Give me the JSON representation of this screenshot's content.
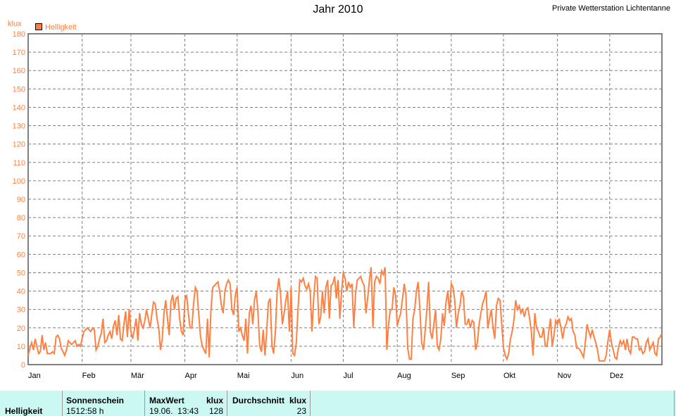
{
  "header": {
    "title": "Jahr 2010",
    "station": "Private Wetterstation Lichtentanne"
  },
  "colors": {
    "series": "#ff8040",
    "grid": "#808080",
    "table_bg": "#ccf8f4"
  },
  "chart_data": {
    "type": "line",
    "title": "Jahr 2010",
    "ylabel": "klux",
    "ylim": [
      0,
      180
    ],
    "yticks": [
      0,
      10,
      20,
      30,
      40,
      50,
      60,
      70,
      80,
      90,
      100,
      110,
      120,
      130,
      140,
      150,
      160,
      170,
      180
    ],
    "months": [
      "Jan",
      "Feb",
      "Mär",
      "Apr",
      "Mai",
      "Jun",
      "Jul",
      "Aug",
      "Sep",
      "Okt",
      "Nov",
      "Dez"
    ],
    "grid": true,
    "legend_position": "top-left",
    "series": [
      {
        "name": "Helligkeit",
        "values": [
          5,
          9,
          12,
          8,
          14,
          10,
          6,
          7,
          16,
          8,
          12,
          6,
          6,
          6,
          7,
          6,
          15,
          16,
          14,
          9,
          7,
          5,
          8,
          13,
          12,
          11,
          12,
          13,
          10,
          11,
          10,
          14,
          18,
          19,
          20,
          19,
          18,
          20,
          19,
          8,
          10,
          14,
          17,
          25,
          12,
          13,
          16,
          18,
          14,
          21,
          24,
          16,
          27,
          14,
          13,
          22,
          29,
          15,
          30,
          18,
          14,
          19,
          25,
          13,
          28,
          22,
          20,
          24,
          30,
          25,
          20,
          27,
          34,
          33,
          25,
          20,
          8,
          14,
          28,
          35,
          25,
          16,
          34,
          38,
          30,
          36,
          37,
          25,
          18,
          16,
          35,
          38,
          28,
          20,
          20,
          33,
          42,
          40,
          27,
          15,
          10,
          8,
          6,
          25,
          4,
          30,
          42,
          43,
          44,
          45,
          40,
          32,
          28,
          40,
          44,
          46,
          44,
          30,
          27,
          38,
          42,
          18,
          20,
          16,
          13,
          25,
          6,
          28,
          32,
          22,
          35,
          40,
          28,
          10,
          7,
          19,
          5,
          18,
          34,
          36,
          10,
          6,
          18,
          40,
          47,
          38,
          22,
          28,
          35,
          40,
          18,
          42,
          6,
          5,
          12,
          30,
          46,
          45,
          47,
          43,
          41,
          44,
          40,
          18,
          36,
          48,
          47,
          22,
          26,
          40,
          28,
          42,
          46,
          25,
          43,
          44,
          48,
          36,
          46,
          25,
          40,
          50,
          47,
          40,
          45,
          42,
          44,
          20,
          38,
          46,
          47,
          48,
          45,
          43,
          28,
          36,
          46,
          53,
          20,
          45,
          48,
          47,
          44,
          51,
          49,
          53,
          8,
          22,
          30,
          30,
          42,
          38,
          21,
          25,
          28,
          36,
          44,
          38,
          9,
          3,
          3,
          25,
          30,
          40,
          45,
          30,
          12,
          8,
          18,
          30,
          45,
          18,
          14,
          22,
          30,
          10,
          8,
          14,
          28,
          21,
          34,
          40,
          28,
          44,
          42,
          35,
          20,
          28,
          32,
          40,
          37,
          22,
          22,
          25,
          20,
          24,
          23,
          8,
          12,
          22,
          28,
          33,
          36,
          40,
          20,
          25,
          30,
          20,
          14,
          32,
          36,
          35,
          22,
          9,
          5,
          3,
          6,
          14,
          18,
          24,
          35,
          30,
          32,
          28,
          30,
          26,
          30,
          31,
          25,
          18,
          5,
          28,
          20,
          18,
          15,
          15,
          20,
          10,
          10,
          18,
          25,
          10,
          16,
          24,
          22,
          25,
          20,
          14,
          20,
          22,
          26,
          24,
          25,
          18,
          16,
          9,
          9,
          8,
          6,
          4,
          12,
          22,
          18,
          15,
          19,
          15,
          12,
          8,
          2,
          2,
          2,
          2,
          5,
          13,
          19,
          12,
          8,
          4,
          3,
          9,
          13,
          11,
          13,
          8,
          14,
          8,
          6,
          15,
          15,
          14,
          14,
          8,
          9,
          6,
          7,
          12,
          14,
          8,
          10,
          12,
          6,
          5,
          14,
          15,
          17
        ]
      }
    ]
  },
  "table": {
    "row_label": "Helligkeit",
    "sunshine_header": "Sonnenschein",
    "sunshine_value": "1512:58 h",
    "max_header": "MaxWert",
    "max_unit": "klux",
    "max_date": "19.06.  13:43",
    "max_value": "128",
    "avg_header": "Durchschnitt",
    "avg_unit": "klux",
    "avg_value": "23"
  }
}
